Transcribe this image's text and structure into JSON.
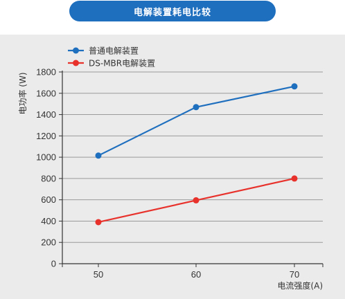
{
  "header": {
    "title": "电解装置耗电比较"
  },
  "chart_data": {
    "type": "line",
    "title": "电解装置耗电比较",
    "xlabel": "电流强度(A)",
    "ylabel": "电功率 (W)",
    "categories": [
      50,
      60,
      70
    ],
    "ylim": [
      0,
      1800
    ],
    "yticks": [
      0,
      200,
      400,
      600,
      800,
      1000,
      1200,
      1400,
      1600,
      1800
    ],
    "grid": "horizontal",
    "legend_position": "top-left",
    "series": [
      {
        "name": "普通电解装置",
        "color": "#1f6fbf",
        "values": [
          1015,
          1470,
          1665
        ]
      },
      {
        "name": "DS-MBR电解装置",
        "color": "#e8312b",
        "values": [
          390,
          595,
          800
        ]
      }
    ]
  }
}
